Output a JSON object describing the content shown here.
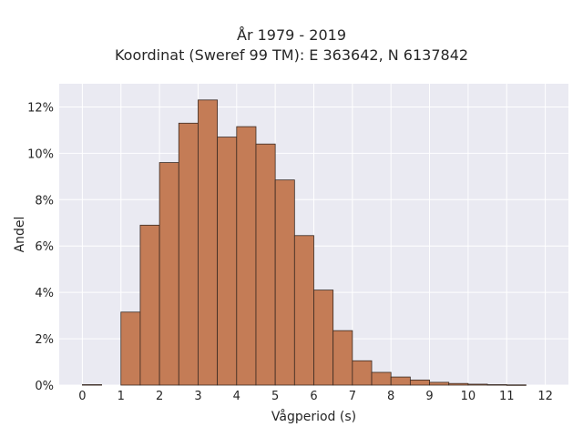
{
  "chart_data": {
    "type": "bar",
    "title": "År 1979 - 2019",
    "subtitle": "Koordinat (Sweref 99 TM): E 363642, N 6137842",
    "xlabel": "Vågperiod (s)",
    "ylabel": "Andel",
    "xlim": [
      -0.6,
      12.6
    ],
    "ylim": [
      0,
      13
    ],
    "xticks": [
      "0",
      "1",
      "2",
      "3",
      "4",
      "5",
      "6",
      "7",
      "8",
      "9",
      "10",
      "11",
      "12"
    ],
    "yticks": [
      "0%",
      "2%",
      "4%",
      "6%",
      "8%",
      "10%",
      "12%"
    ],
    "bin_width": 0.5,
    "bins": [
      {
        "x0": 0.0,
        "value": 0.02
      },
      {
        "x0": 1.0,
        "value": 3.15
      },
      {
        "x0": 1.5,
        "value": 6.9
      },
      {
        "x0": 2.0,
        "value": 9.6
      },
      {
        "x0": 2.5,
        "value": 11.3
      },
      {
        "x0": 3.0,
        "value": 12.3
      },
      {
        "x0": 3.5,
        "value": 10.7
      },
      {
        "x0": 4.0,
        "value": 11.15
      },
      {
        "x0": 4.5,
        "value": 10.4
      },
      {
        "x0": 5.0,
        "value": 8.85
      },
      {
        "x0": 5.5,
        "value": 6.45
      },
      {
        "x0": 6.0,
        "value": 4.1
      },
      {
        "x0": 6.5,
        "value": 2.35
      },
      {
        "x0": 7.0,
        "value": 1.05
      },
      {
        "x0": 7.5,
        "value": 0.55
      },
      {
        "x0": 8.0,
        "value": 0.35
      },
      {
        "x0": 8.5,
        "value": 0.22
      },
      {
        "x0": 9.0,
        "value": 0.12
      },
      {
        "x0": 9.5,
        "value": 0.07
      },
      {
        "x0": 10.0,
        "value": 0.04
      },
      {
        "x0": 10.5,
        "value": 0.02
      },
      {
        "x0": 11.0,
        "value": 0.01
      }
    ],
    "grid": true,
    "colors": {
      "bar": "#c47c56",
      "bar_edge": "#3a2a22",
      "plot_bg": "#eaeaf2",
      "grid": "#ffffff"
    }
  }
}
